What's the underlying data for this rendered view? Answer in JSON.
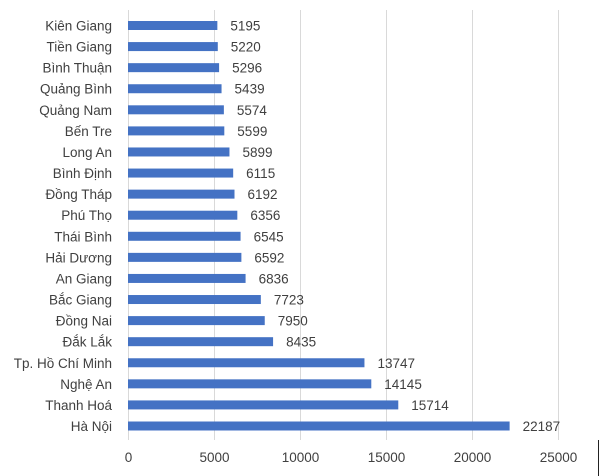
{
  "chart_data": {
    "type": "bar",
    "orientation": "horizontal",
    "categories": [
      "Kiên Giang",
      "Tiền Giang",
      "Bình Thuận",
      "Quảng Bình",
      "Quảng Nam",
      "Bến Tre",
      "Long An",
      "Bình Định",
      "Đồng Tháp",
      "Phú Thọ",
      "Thái Bình",
      "Hải Dương",
      "An Giang",
      "Bắc Giang",
      "Đồng Nai",
      "Đắk Lắk",
      "Tp. Hồ Chí Minh",
      "Nghệ An",
      "Thanh Hoá",
      "Hà Nội"
    ],
    "values": [
      5195,
      5220,
      5296,
      5439,
      5574,
      5599,
      5899,
      6115,
      6192,
      6356,
      6545,
      6592,
      6836,
      7723,
      7950,
      8435,
      13747,
      14145,
      15714,
      22187
    ],
    "xlim": [
      0,
      25000
    ],
    "xticks": [
      "0",
      "5000",
      "10000",
      "15000",
      "20000",
      "25000"
    ],
    "grid": true,
    "data_labels": true,
    "bar_color": "#4472c4",
    "title": "",
    "xlabel": "",
    "ylabel": ""
  }
}
